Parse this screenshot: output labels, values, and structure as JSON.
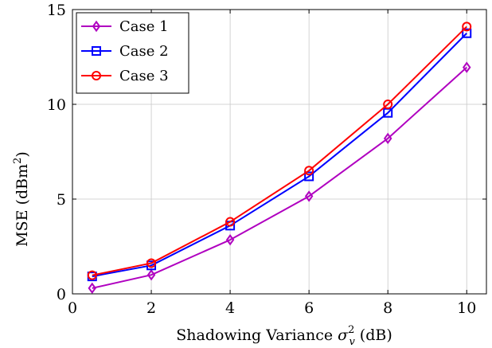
{
  "chart_data": {
    "type": "line",
    "xlabel": "Shadowing Variance",
    "xlabel_symbol": "σ",
    "xlabel_sub": "v",
    "xlabel_sup": "2",
    "xlabel_unit": "(dB)",
    "ylabel": "MSE (dBm",
    "ylabel_sup": "2",
    "ylabel_close": ")",
    "xlim": [
      0,
      10.5
    ],
    "ylim": [
      0,
      15
    ],
    "xticks": [
      0,
      2,
      4,
      6,
      8,
      10
    ],
    "yticks": [
      0,
      5,
      10,
      15
    ],
    "grid": true,
    "legend_position": "top-left",
    "series": [
      {
        "name": "Case 1",
        "color": "#b000c0",
        "marker": "diamond",
        "x": [
          0.5,
          2,
          4,
          6,
          8,
          10
        ],
        "y": [
          0.3,
          1.0,
          2.85,
          5.15,
          8.2,
          11.95
        ]
      },
      {
        "name": "Case 2",
        "color": "#0000ff",
        "marker": "square",
        "x": [
          0.5,
          2,
          4,
          6,
          8,
          10
        ],
        "y": [
          0.92,
          1.5,
          3.6,
          6.2,
          9.55,
          13.75
        ]
      },
      {
        "name": "Case 3",
        "color": "#ff0000",
        "marker": "circle",
        "x": [
          0.5,
          2,
          4,
          6,
          8,
          10
        ],
        "y": [
          0.98,
          1.62,
          3.8,
          6.5,
          10.0,
          14.1
        ]
      }
    ]
  }
}
